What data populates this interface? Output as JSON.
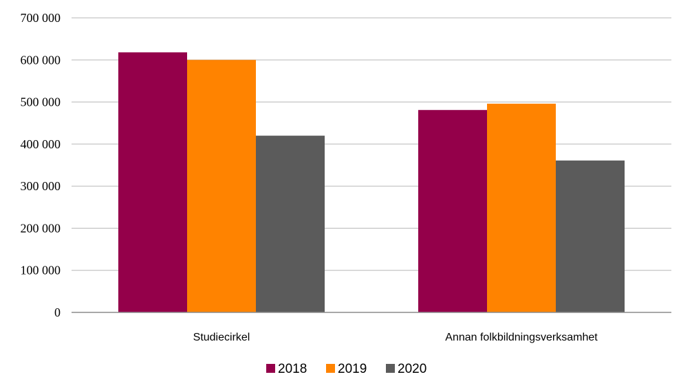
{
  "chart_data": {
    "type": "bar",
    "categories": [
      "Studiecirkel",
      "Annan folkbildningsverksamhet"
    ],
    "series": [
      {
        "name": "2018",
        "values": [
          618000,
          481000
        ],
        "color": "#94004a"
      },
      {
        "name": "2019",
        "values": [
          600000,
          496000
        ],
        "color": "#ff8300"
      },
      {
        "name": "2020",
        "values": [
          420000,
          361000
        ],
        "color": "#5b5b5b"
      }
    ],
    "ylim": [
      0,
      700000
    ],
    "yticks": [
      0,
      100000,
      200000,
      300000,
      400000,
      500000,
      600000,
      700000
    ],
    "ytick_labels": [
      "0",
      "100 000",
      "200 000",
      "300 000",
      "400 000",
      "500 000",
      "600 000",
      "700 000"
    ],
    "grid": true,
    "legend_position": "bottom"
  }
}
